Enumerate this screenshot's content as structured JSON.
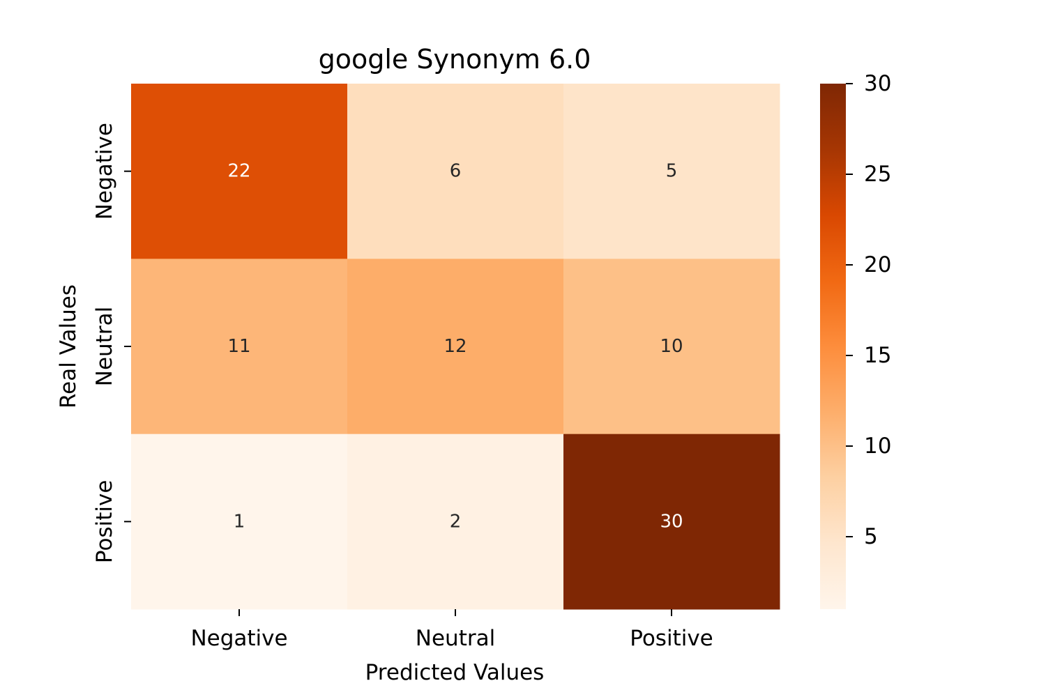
{
  "chart_data": {
    "type": "heatmap",
    "title": "google Synonym 6.0",
    "xlabel": "Predicted Values",
    "ylabel": "Real Values",
    "x_categories": [
      "Negative",
      "Neutral",
      "Positive"
    ],
    "y_categories": [
      "Negative",
      "Neutral",
      "Positive"
    ],
    "values": [
      [
        22,
        6,
        5
      ],
      [
        11,
        12,
        10
      ],
      [
        1,
        2,
        30
      ]
    ],
    "colormap": "Oranges",
    "color_range": [
      1,
      30
    ],
    "colorbar_ticks": [
      5,
      10,
      15,
      20,
      25,
      30
    ],
    "colorbar_tick_labels": [
      "5",
      "10",
      "15",
      "20",
      "25",
      "30"
    ],
    "grid": false,
    "legend": "colorbar-right"
  }
}
